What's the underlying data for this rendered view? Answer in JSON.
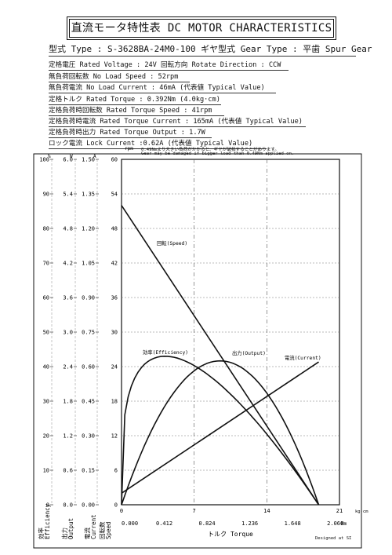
{
  "header": {
    "title": "直流モータ特性表 DC MOTOR CHARACTERISTICS"
  },
  "specs": {
    "model": "型式 Type : S-3628BA-24M0-100  ギヤ型式 Gear Type : 平歯  Spur Gear",
    "rated_voltage": "定格電圧 Rated Voltage : 24V  回転方向 Rotate Direction : CCW",
    "no_load_speed": "無負荷回転数 No Load Speed : 52rpm",
    "no_load_current": "無負荷電流 No Load Current : 46mA (代表値 Typical Value)",
    "rated_torque": "定格トルク Rated Torque : 0.392Nm (4.0kg·cm)",
    "rated_torque_speed": "定格負荷時回転数 Rated Torque Speed : 41rpm",
    "rated_torque_current": "定格負荷時電流 Rated Torque Current : 165mA (代表値 Typical Value)",
    "rated_torque_output": "定格負荷時出力 Rated Torque Output : 1.7W",
    "lock_current": "ロック電流 Lock Current :0.62A (代表値 Typical Value)"
  },
  "warning": {
    "jp": "0.49Nmより大きい負荷がかかると、ギヤが破損することがあります。",
    "en": "Gear may be damaged if bigger load than 0.49Nm applied on."
  },
  "credit": "Designed at SI",
  "chart_data": {
    "type": "line",
    "grid": true,
    "axes": {
      "x_kgcm": {
        "ticks": [
          0,
          7,
          14,
          21
        ],
        "unit": "kg·cm",
        "range": [
          0,
          21
        ]
      },
      "x_nm": {
        "ticks": [
          "0.000",
          "0.412",
          "0.824",
          "1.236",
          "1.648",
          "2.060"
        ],
        "unit": "Nm",
        "range": [
          0,
          2.06
        ],
        "label": "トルク Torque"
      },
      "speed": {
        "ticks": [
          0,
          6,
          12,
          18,
          24,
          30,
          36,
          42,
          48,
          54,
          60
        ],
        "unit": "rpm",
        "range": [
          0,
          60
        ],
        "label_jp": "回転数",
        "label_en": "Speed"
      },
      "current": {
        "ticks": [
          "0.00",
          "0.15",
          "0.30",
          "0.45",
          "0.60",
          "0.75",
          "0.90",
          "1.05",
          "1.20",
          "1.35",
          "1.50"
        ],
        "unit": "A",
        "range": [
          0,
          1.5
        ],
        "label_jp": "電流",
        "label_en": "Current"
      },
      "output": {
        "ticks": [
          "0.0",
          "0.6",
          "1.2",
          "1.8",
          "2.4",
          "3.0",
          "3.6",
          "4.2",
          "4.8",
          "5.4",
          "6.0"
        ],
        "unit": "W",
        "range": [
          0,
          6
        ],
        "label_jp": "出力",
        "label_en": "Output"
      },
      "efficiency": {
        "ticks": [
          0,
          10,
          20,
          30,
          40,
          50,
          60,
          70,
          80,
          90,
          100
        ],
        "unit": "%",
        "range": [
          0,
          100
        ],
        "label_jp": "効率",
        "label_en": "Efficiency"
      }
    },
    "series": [
      {
        "name": "回転(Speed)",
        "axis": "speed",
        "x_kgcm": [
          0,
          19.0
        ],
        "values": [
          52,
          0
        ]
      },
      {
        "name": "電流(Current)",
        "axis": "current",
        "x_kgcm": [
          0,
          19.0
        ],
        "values": [
          0.05,
          0.62
        ]
      },
      {
        "name": "出力(Output)",
        "axis": "output",
        "curve": "parabola",
        "x_kgcm": [
          0,
          9.5,
          19.0
        ],
        "values": [
          0,
          2.5,
          0
        ]
      },
      {
        "name": "効率(Efficiency)",
        "axis": "efficiency",
        "curve": "peak",
        "x_kgcm": [
          0,
          4.2,
          19.0
        ],
        "values": [
          0,
          43,
          0
        ]
      }
    ]
  }
}
